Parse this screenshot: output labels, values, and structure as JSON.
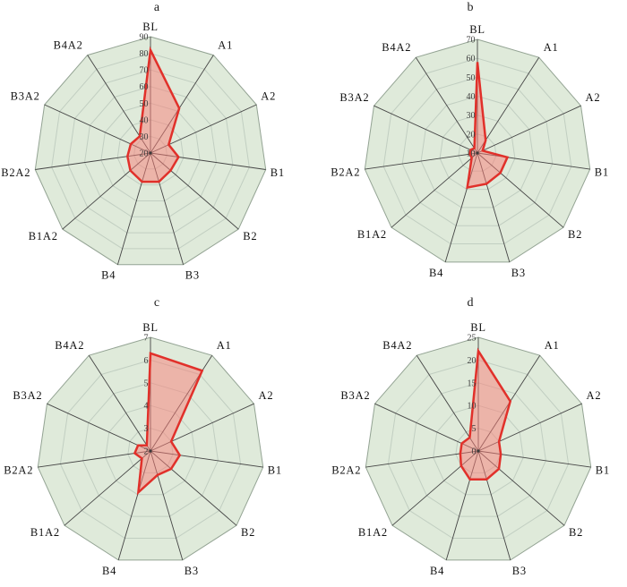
{
  "figure": {
    "description": "Four 11-axis radar (spider) charts labelled a, b, c, d, each with a light-green gridded web and a single red data series",
    "panel_titles": [
      "a",
      "b",
      "c",
      "d"
    ]
  },
  "colors": {
    "background": "#ffffff",
    "web_fill": "#dfeada",
    "web_border": "#93a393",
    "grid_line": "#c1cec1",
    "spoke_line": "#454545",
    "series_stroke": "#e1302a",
    "series_fill": "rgba(250,125,120,0.5)",
    "tick_text": "#3d3d3d",
    "axis_label_text": "#111111",
    "center_dot": "#3a3a3a"
  },
  "chart_data": [
    {
      "type": "radar",
      "title": "a",
      "categories": [
        "BL",
        "A1",
        "A2",
        "B1",
        "B2",
        "B3",
        "B4",
        "B1A2",
        "B2A2",
        "B3A2",
        "B4A2"
      ],
      "min": 20,
      "max": 90,
      "step": 10,
      "ticks": [
        20,
        30,
        40,
        50,
        60,
        70,
        80,
        90
      ],
      "values": [
        82,
        52,
        32,
        37,
        36,
        38,
        38,
        36,
        34,
        33,
        32
      ],
      "grid": true,
      "legend": "none"
    },
    {
      "type": "radar",
      "title": "b",
      "categories": [
        "BL",
        "A1",
        "A2",
        "B1",
        "B2",
        "B3",
        "B4",
        "B1A2",
        "B2A2",
        "B3A2",
        "B4A2"
      ],
      "min": 10,
      "max": 70,
      "step": 10,
      "ticks": [
        10,
        20,
        30,
        40,
        50,
        60,
        70
      ],
      "values": [
        58,
        18,
        13,
        26,
        26,
        27,
        29,
        14,
        14,
        14,
        13
      ],
      "grid": true,
      "legend": "none"
    },
    {
      "type": "radar",
      "title": "c",
      "categories": [
        "BL",
        "A1",
        "A2",
        "B1",
        "B2",
        "B3",
        "B4",
        "B1A2",
        "B2A2",
        "B3A2",
        "B4A2"
      ],
      "min": 2,
      "max": 7,
      "step": 1,
      "ticks": [
        2,
        3,
        4,
        5,
        6,
        7
      ],
      "values": [
        6.3,
        6.2,
        3.0,
        3.3,
        3.2,
        3.1,
        3.9,
        2.5,
        2.7,
        2.6,
        2.3
      ],
      "grid": true,
      "legend": "none"
    },
    {
      "type": "radar",
      "title": "d",
      "categories": [
        "BL",
        "A1",
        "A2",
        "B1",
        "B2",
        "B3",
        "B4",
        "B1A2",
        "B2A2",
        "B3A2",
        "B4A2"
      ],
      "min": 0,
      "max": 25,
      "step": 5,
      "ticks": [
        0,
        5,
        10,
        15,
        20,
        25
      ],
      "values": [
        22,
        13,
        5,
        5,
        6,
        6.5,
        6.5,
        5,
        4,
        4,
        3.5
      ],
      "grid": true,
      "legend": "none"
    }
  ]
}
